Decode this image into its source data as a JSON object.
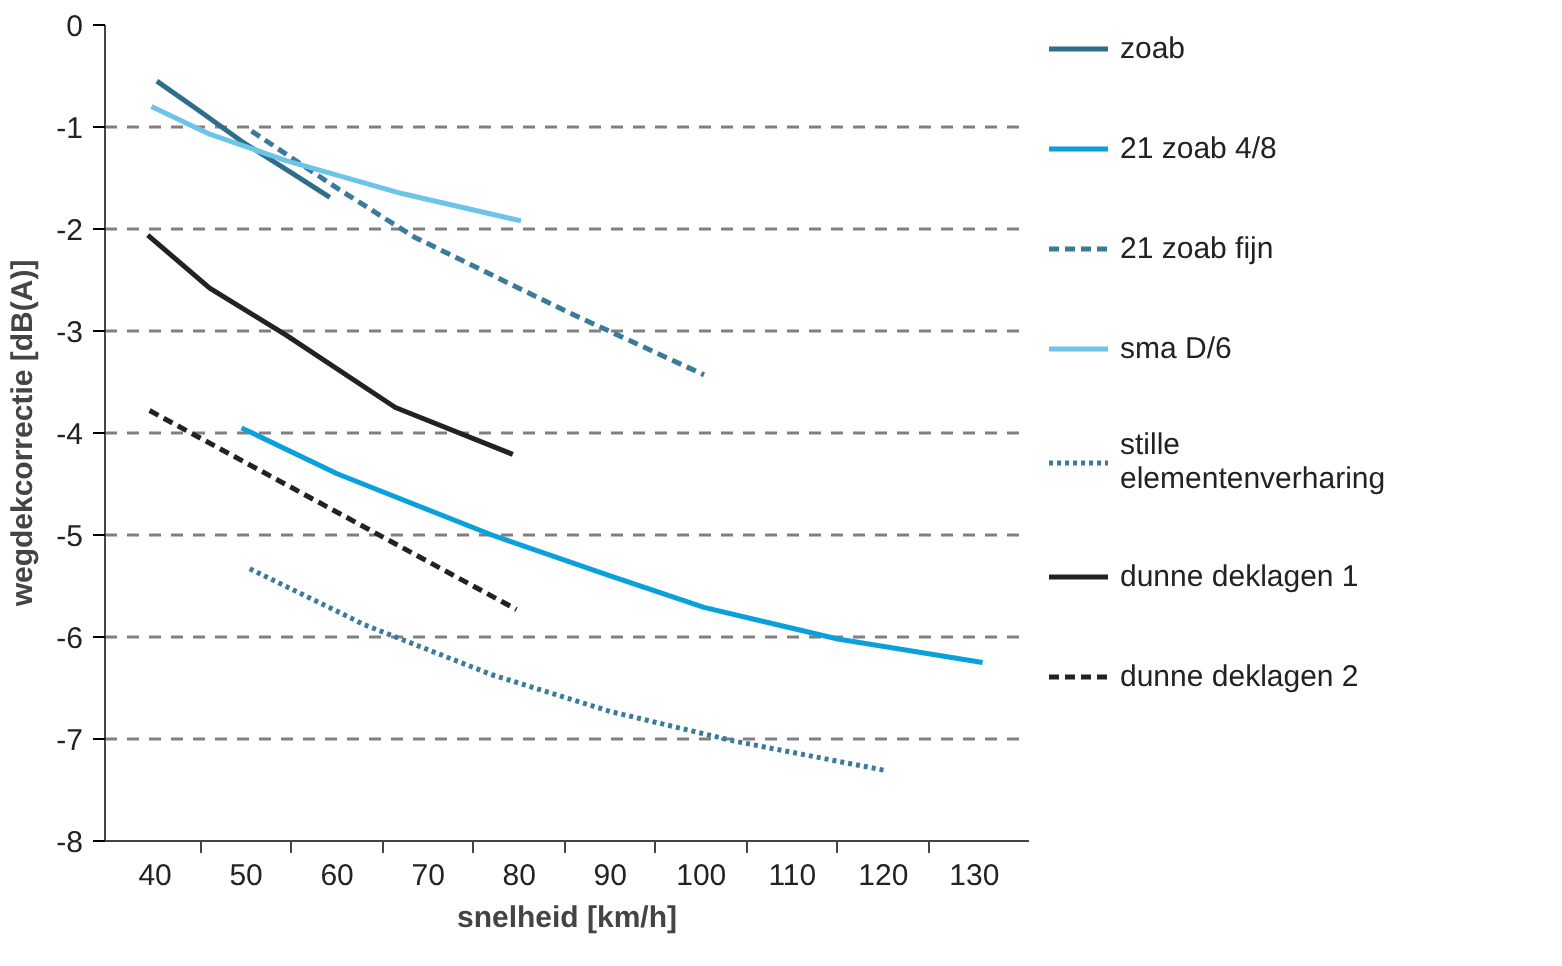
{
  "chart_data": {
    "type": "line",
    "xlabel": "snelheid [km/h]",
    "ylabel": "wegdekcorrectie [dB(A)]",
    "xlim": [
      34.5,
      136
    ],
    "ylim": [
      -8,
      0
    ],
    "xticks": [
      40,
      {
        "value": 45,
        "label": null
      },
      50,
      {
        "value": 55,
        "label": null
      },
      60,
      {
        "value": 65,
        "label": null
      },
      70,
      {
        "value": 75,
        "label": null
      },
      80,
      {
        "value": 85,
        "label": null
      },
      90,
      {
        "value": 95,
        "label": null
      },
      100,
      {
        "value": 105,
        "label": null
      },
      110,
      {
        "value": 115,
        "label": null
      },
      120,
      {
        "value": 125,
        "label": null
      },
      130
    ],
    "yticks": [
      -8,
      -7,
      -6,
      -5,
      -4,
      -3,
      -2,
      -1,
      0
    ],
    "grid": "y",
    "legend": "right",
    "series": [
      {
        "name": "zoab",
        "color": "#2f6e8a",
        "line_style": "solid",
        "x": [
          40.2,
          45,
          49.5,
          55,
          59.2
        ],
        "values": [
          -0.55,
          -0.85,
          -1.14,
          -1.45,
          -1.69
        ]
      },
      {
        "name": "21 zoab 4/8",
        "color": "#0aa0dc",
        "line_style": "solid",
        "x": [
          49.5,
          60,
          77,
          90,
          100.3,
          115,
          130.9
        ],
        "values": [
          -3.95,
          -4.4,
          -5.0,
          -5.4,
          -5.71,
          -6.02,
          -6.25
        ]
      },
      {
        "name": "21 zoab fijn",
        "color": "#3a7a9a",
        "line_style": "dashed",
        "x": [
          50.6,
          60,
          68.5,
          85,
          100.3
        ],
        "values": [
          -1.04,
          -1.6,
          -2.08,
          -2.8,
          -3.43
        ]
      },
      {
        "name": "sma D/6",
        "color": "#6cc4e8",
        "line_style": "solid",
        "x": [
          39.6,
          46,
          54.4,
          67,
          80.2
        ],
        "values": [
          -0.8,
          -1.07,
          -1.33,
          -1.65,
          -1.92
        ]
      },
      {
        "name": "stille\nelementenverharing",
        "color": "#3a7a9a",
        "line_style": "dotted",
        "x": [
          50.4,
          63,
          77,
          90,
          103.6,
          120.3
        ],
        "values": [
          -5.33,
          -5.88,
          -6.37,
          -6.73,
          -7.02,
          -7.31
        ]
      },
      {
        "name": "dunne deklagen 1",
        "color": "#222222",
        "line_style": "solid",
        "x": [
          39.2,
          46,
          54.4,
          66.4,
          79.3
        ],
        "values": [
          -2.06,
          -2.58,
          -3.04,
          -3.75,
          -4.21
        ]
      },
      {
        "name": "dunne deklagen 2",
        "color": "#222222",
        "line_style": "dashed",
        "x": [
          39.4,
          79.7
        ],
        "values": [
          -3.78,
          -5.73
        ]
      }
    ]
  }
}
